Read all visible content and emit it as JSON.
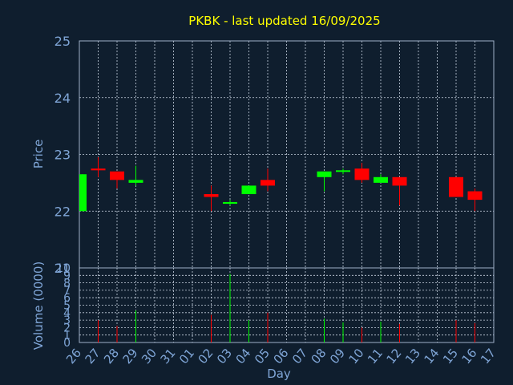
{
  "chart_data": [
    {
      "type": "candlestick",
      "title": "PKBK - last updated 16/09/2025",
      "ylabel": "Price",
      "ylim": [
        21.0,
        25.0
      ],
      "yticks": [
        "21",
        "22",
        "23",
        "24",
        "25"
      ],
      "grid": true,
      "colors": {
        "up": "#00ff00",
        "down": "#ff0000",
        "title": "#ffff00",
        "axis_text": "#7fa5d6",
        "frame": "#9fb0c8",
        "background": "#0f1e2e"
      },
      "candles": [
        {
          "day": "26",
          "index": 0,
          "open": 22.0,
          "high": 22.65,
          "low": 22.0,
          "close": 22.65
        },
        {
          "day": "27",
          "index": 1,
          "open": 22.75,
          "high": 22.95,
          "low": 22.6,
          "close": 22.72
        },
        {
          "day": "28",
          "index": 2,
          "open": 22.7,
          "high": 22.7,
          "low": 22.4,
          "close": 22.55
        },
        {
          "day": "29",
          "index": 3,
          "open": 22.5,
          "high": 22.8,
          "low": 22.45,
          "close": 22.55
        },
        {
          "day": "02",
          "index": 7,
          "open": 22.3,
          "high": 22.45,
          "low": 22.0,
          "close": 22.25
        },
        {
          "day": "03",
          "index": 8,
          "open": 22.13,
          "high": 22.2,
          "low": 22.1,
          "close": 22.16
        },
        {
          "day": "04",
          "index": 9,
          "open": 22.3,
          "high": 22.45,
          "low": 22.3,
          "close": 22.45
        },
        {
          "day": "05",
          "index": 10,
          "open": 22.55,
          "high": 22.75,
          "low": 22.35,
          "close": 22.45
        },
        {
          "day": "08",
          "index": 13,
          "open": 22.6,
          "high": 22.7,
          "low": 22.35,
          "close": 22.7
        },
        {
          "day": "09",
          "index": 14,
          "open": 22.7,
          "high": 22.75,
          "low": 22.65,
          "close": 22.72
        },
        {
          "day": "10",
          "index": 15,
          "open": 22.75,
          "high": 22.85,
          "low": 22.5,
          "close": 22.55
        },
        {
          "day": "11",
          "index": 16,
          "open": 22.5,
          "high": 22.65,
          "low": 22.5,
          "close": 22.6
        },
        {
          "day": "12",
          "index": 17,
          "open": 22.6,
          "high": 22.6,
          "low": 22.1,
          "close": 22.45
        },
        {
          "day": "15",
          "index": 20,
          "open": 22.6,
          "high": 22.6,
          "low": 22.25,
          "close": 22.25
        },
        {
          "day": "16",
          "index": 21,
          "open": 22.35,
          "high": 22.4,
          "low": 22.0,
          "close": 22.2
        }
      ]
    },
    {
      "type": "bar",
      "ylabel": "Volume (0000)",
      "xlabel": "Day",
      "ylim": [
        0,
        10
      ],
      "yticks": [
        "0",
        "1",
        "2",
        "3",
        "4",
        "5",
        "6",
        "7",
        "8",
        "9",
        "10"
      ],
      "grid": true,
      "categories": [
        "26",
        "27",
        "28",
        "29",
        "30",
        "31",
        "01",
        "02",
        "03",
        "04",
        "05",
        "06",
        "07",
        "08",
        "09",
        "10",
        "11",
        "12",
        "13",
        "14",
        "15",
        "16",
        "17"
      ],
      "bars": [
        {
          "day": "27",
          "index": 1,
          "value": 3.0,
          "dir": "down"
        },
        {
          "day": "28",
          "index": 2,
          "value": 2.2,
          "dir": "down"
        },
        {
          "day": "29",
          "index": 3,
          "value": 4.3,
          "dir": "up"
        },
        {
          "day": "02",
          "index": 7,
          "value": 3.7,
          "dir": "down"
        },
        {
          "day": "03",
          "index": 8,
          "value": 9.2,
          "dir": "up"
        },
        {
          "day": "04",
          "index": 9,
          "value": 3.0,
          "dir": "up"
        },
        {
          "day": "05",
          "index": 10,
          "value": 4.0,
          "dir": "down"
        },
        {
          "day": "08",
          "index": 13,
          "value": 3.2,
          "dir": "up"
        },
        {
          "day": "09",
          "index": 14,
          "value": 2.7,
          "dir": "up"
        },
        {
          "day": "10",
          "index": 15,
          "value": 2.0,
          "dir": "down"
        },
        {
          "day": "11",
          "index": 16,
          "value": 2.8,
          "dir": "up"
        },
        {
          "day": "12",
          "index": 17,
          "value": 2.5,
          "dir": "down"
        },
        {
          "day": "15",
          "index": 20,
          "value": 3.0,
          "dir": "down"
        },
        {
          "day": "16",
          "index": 21,
          "value": 2.6,
          "dir": "down"
        }
      ]
    }
  ]
}
